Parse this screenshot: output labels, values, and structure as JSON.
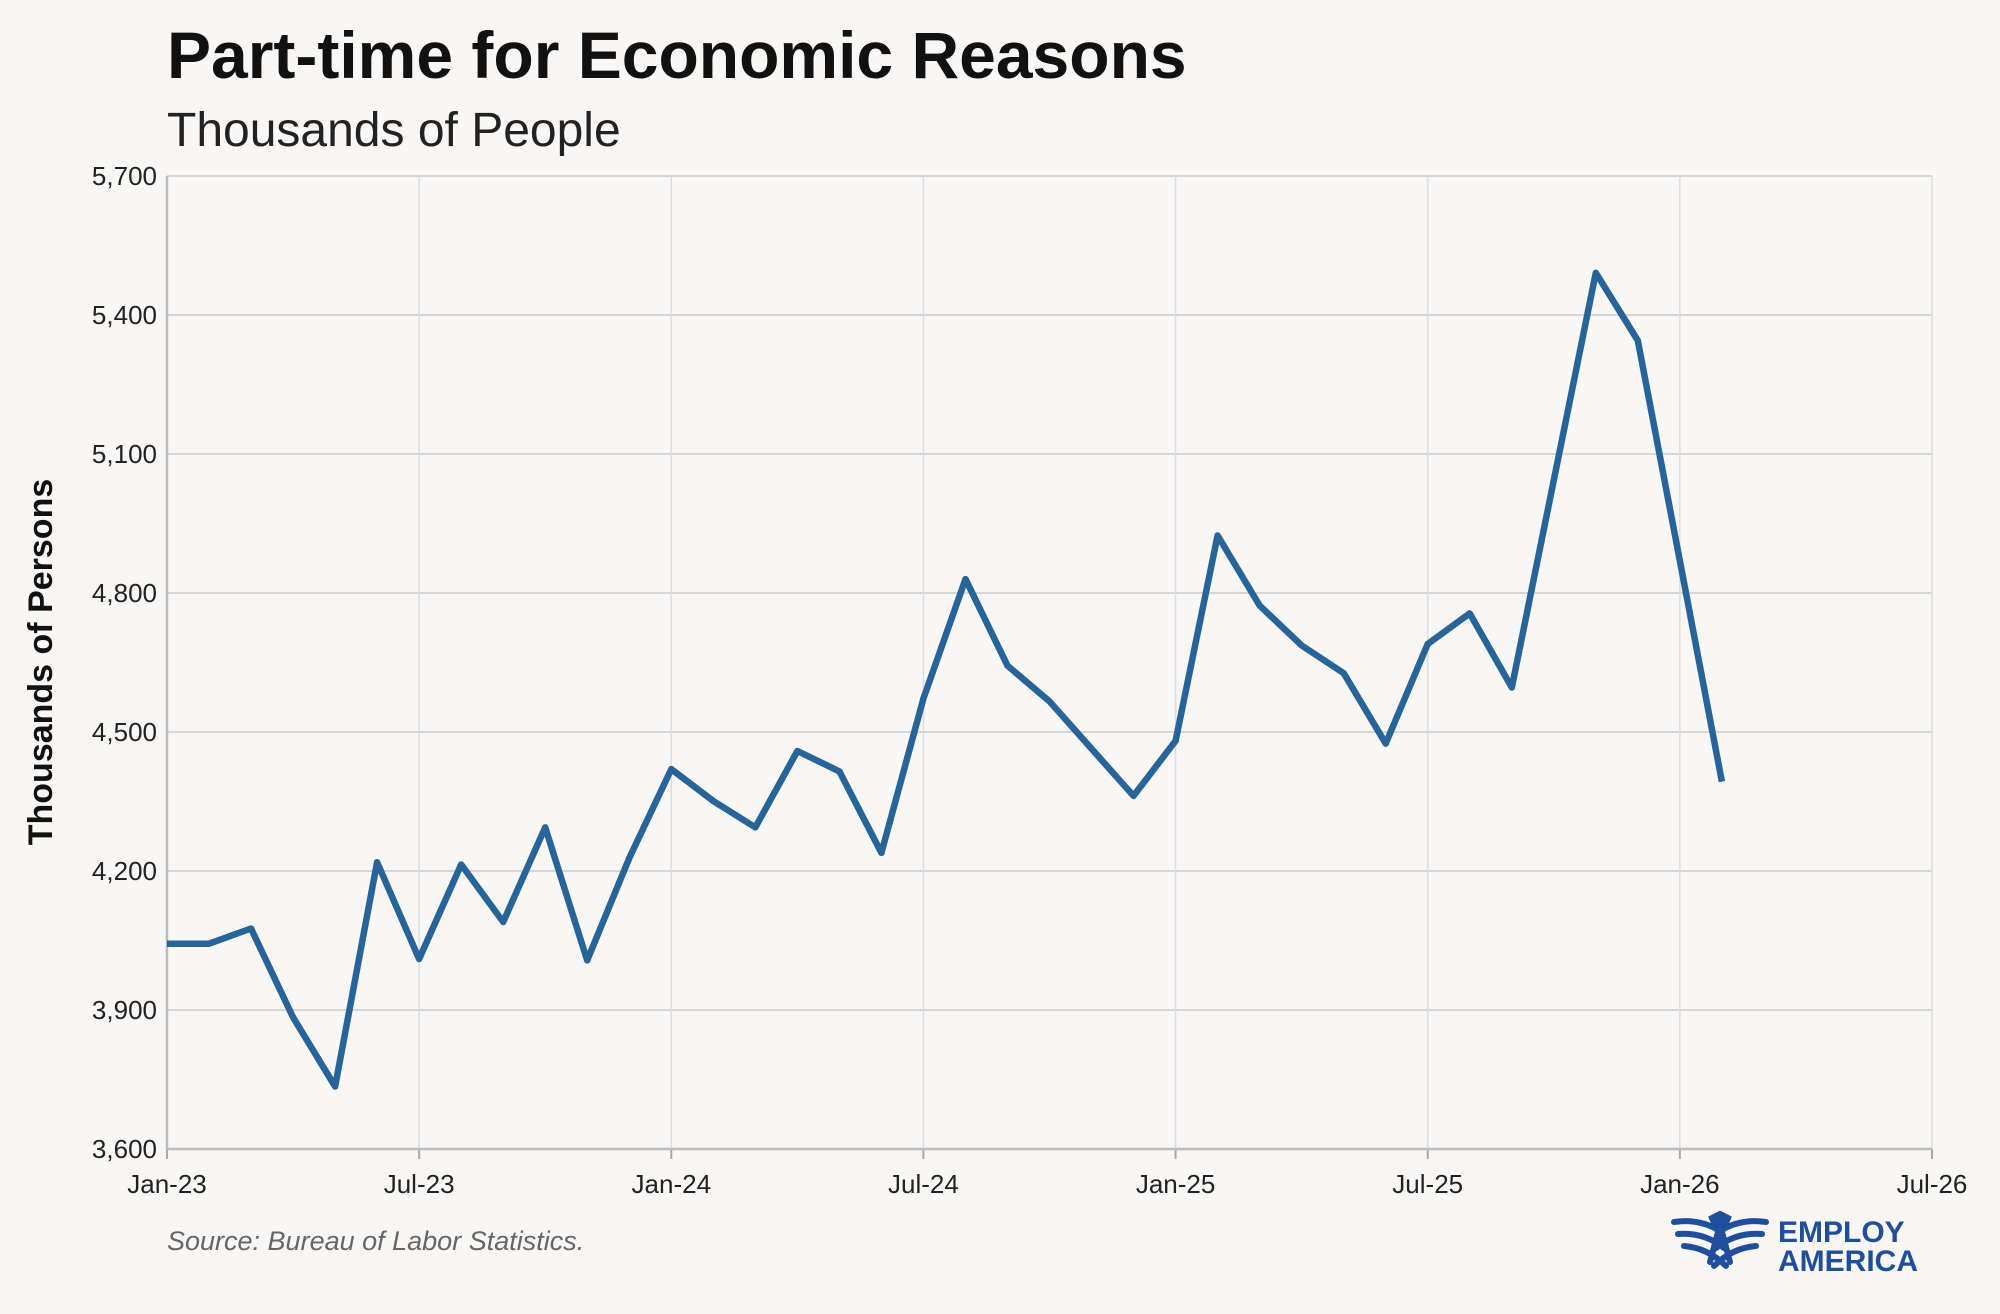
{
  "chart_data": {
    "type": "line",
    "title": "Part-time for Economic Reasons",
    "subtitle": "Thousands of People",
    "xlabel": "",
    "ylabel": "Thousands of Persons",
    "ylim": [
      3600,
      5700
    ],
    "yticks": [
      3600,
      3900,
      4200,
      4500,
      4800,
      5100,
      5400,
      5700
    ],
    "ytick_labels": [
      "3,600",
      "3,900",
      "4,200",
      "4,500",
      "4,800",
      "5,100",
      "5,400",
      "5,700"
    ],
    "xticks": [
      "Jan-23",
      "Jul-23",
      "Jan-24",
      "Jul-24",
      "Jan-25",
      "Jul-25",
      "Jan-26",
      "Jul-26"
    ],
    "x_start": "Jan-23",
    "x_range_months": 42,
    "grid": true,
    "color": "#26649a",
    "series": [
      {
        "name": "Part-time for Economic Reasons",
        "x": [
          "Jan-23",
          "Feb-23",
          "Mar-23",
          "Apr-23",
          "May-23",
          "Jun-23",
          "Jul-23",
          "Aug-23",
          "Sep-23",
          "Oct-23",
          "Nov-23",
          "Dec-23",
          "Jan-24",
          "Feb-24",
          "Mar-24",
          "Apr-24",
          "May-24",
          "Jun-24",
          "Jul-24",
          "Aug-24",
          "Sep-24",
          "Oct-24",
          "Nov-24",
          "Dec-24",
          "Jan-25",
          "Feb-25",
          "Mar-25",
          "Apr-25",
          "May-25",
          "Jun-25",
          "Jul-25",
          "Aug-25",
          "Sep-25",
          "Oct-25",
          "Nov-25",
          "Dec-25",
          "Jan-26",
          "Feb-26"
        ],
        "values": [
          4043,
          4043,
          4076,
          3884,
          3735,
          4219,
          4010,
          4214,
          4090,
          4294,
          4007,
          4228,
          4420,
          4351,
          4294,
          4459,
          4415,
          4239,
          4572,
          4830,
          4643,
          4566,
          4464,
          4362,
          4481,
          4924,
          4773,
          4687,
          4627,
          4475,
          4690,
          4756,
          4596,
          null,
          5491,
          5345,
          4869,
          4393
        ]
      }
    ],
    "source": "Source: Bureau of Labor Statistics.",
    "logo": {
      "line1": "EMPLOY",
      "line2": "AMERICA",
      "color": "#1f4e9c"
    }
  }
}
